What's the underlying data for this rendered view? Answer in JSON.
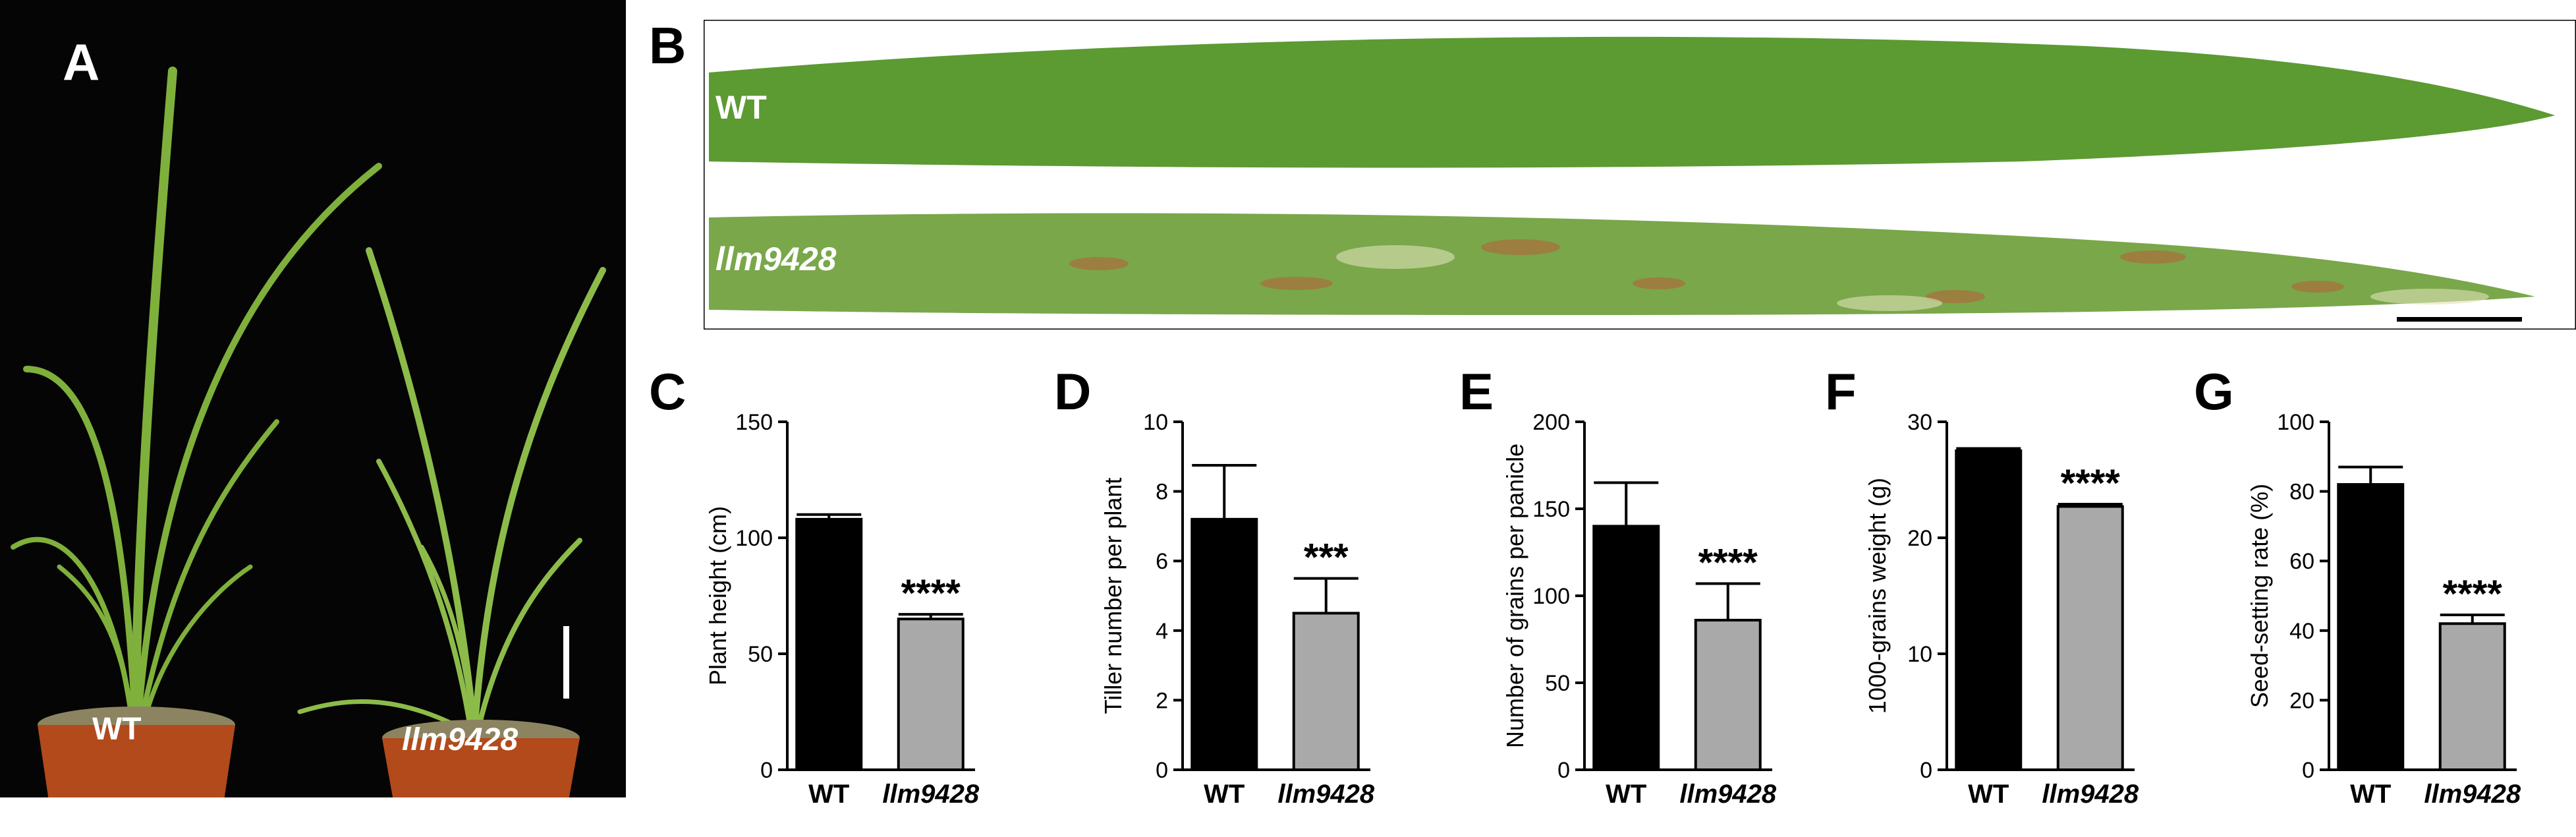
{
  "figure": {
    "panel_letters": [
      "A",
      "B",
      "C",
      "D",
      "E",
      "F",
      "G"
    ],
    "photo_a": {
      "labels": [
        "WT",
        "llm9428"
      ]
    },
    "photo_b": {
      "labels": [
        "WT",
        "llm9428"
      ]
    }
  },
  "colors": {
    "wt_bar": "#000000",
    "mutant_bar": "#a9a9a9",
    "photo_background": "#050505"
  },
  "chart_data": [
    {
      "panel": "C",
      "type": "bar",
      "categories": [
        "WT",
        "llm9428"
      ],
      "values": [
        108,
        65
      ],
      "errors": [
        2,
        2
      ],
      "significance": [
        "",
        "****"
      ],
      "ylabel": "Plant height (cm)",
      "ylim": [
        0,
        150
      ],
      "yticks": [
        0,
        50,
        100,
        150
      ],
      "grid": false
    },
    {
      "panel": "D",
      "type": "bar",
      "categories": [
        "WT",
        "llm9428"
      ],
      "values": [
        7.2,
        4.5
      ],
      "errors": [
        1.55,
        1.0
      ],
      "significance": [
        "",
        "***"
      ],
      "ylabel": "Tiller number per plant",
      "ylim": [
        0,
        10
      ],
      "yticks": [
        0,
        2,
        4,
        6,
        8,
        10
      ],
      "grid": false
    },
    {
      "panel": "E",
      "type": "bar",
      "categories": [
        "WT",
        "llm9428"
      ],
      "values": [
        140,
        86
      ],
      "errors": [
        25,
        21
      ],
      "significance": [
        "",
        "****"
      ],
      "ylabel": "Number of grains per panicle",
      "ylim": [
        0,
        200
      ],
      "yticks": [
        0,
        50,
        100,
        150,
        200
      ],
      "grid": false
    },
    {
      "panel": "F",
      "type": "bar",
      "categories": [
        "WT",
        "llm9428"
      ],
      "values": [
        27.5,
        22.7
      ],
      "errors": [
        0.2,
        0.2
      ],
      "significance": [
        "",
        "****"
      ],
      "ylabel": "1000-grains weight (g)",
      "ylim": [
        0,
        30
      ],
      "yticks": [
        0,
        10,
        20,
        30
      ],
      "grid": false
    },
    {
      "panel": "G",
      "type": "bar",
      "categories": [
        "WT",
        "llm9428"
      ],
      "values": [
        82,
        42
      ],
      "errors": [
        5,
        2.5
      ],
      "significance": [
        "",
        "****"
      ],
      "ylabel": "Seed-setting rate (%)",
      "ylim": [
        0,
        100
      ],
      "yticks": [
        0,
        20,
        40,
        60,
        80,
        100
      ],
      "grid": false
    }
  ]
}
